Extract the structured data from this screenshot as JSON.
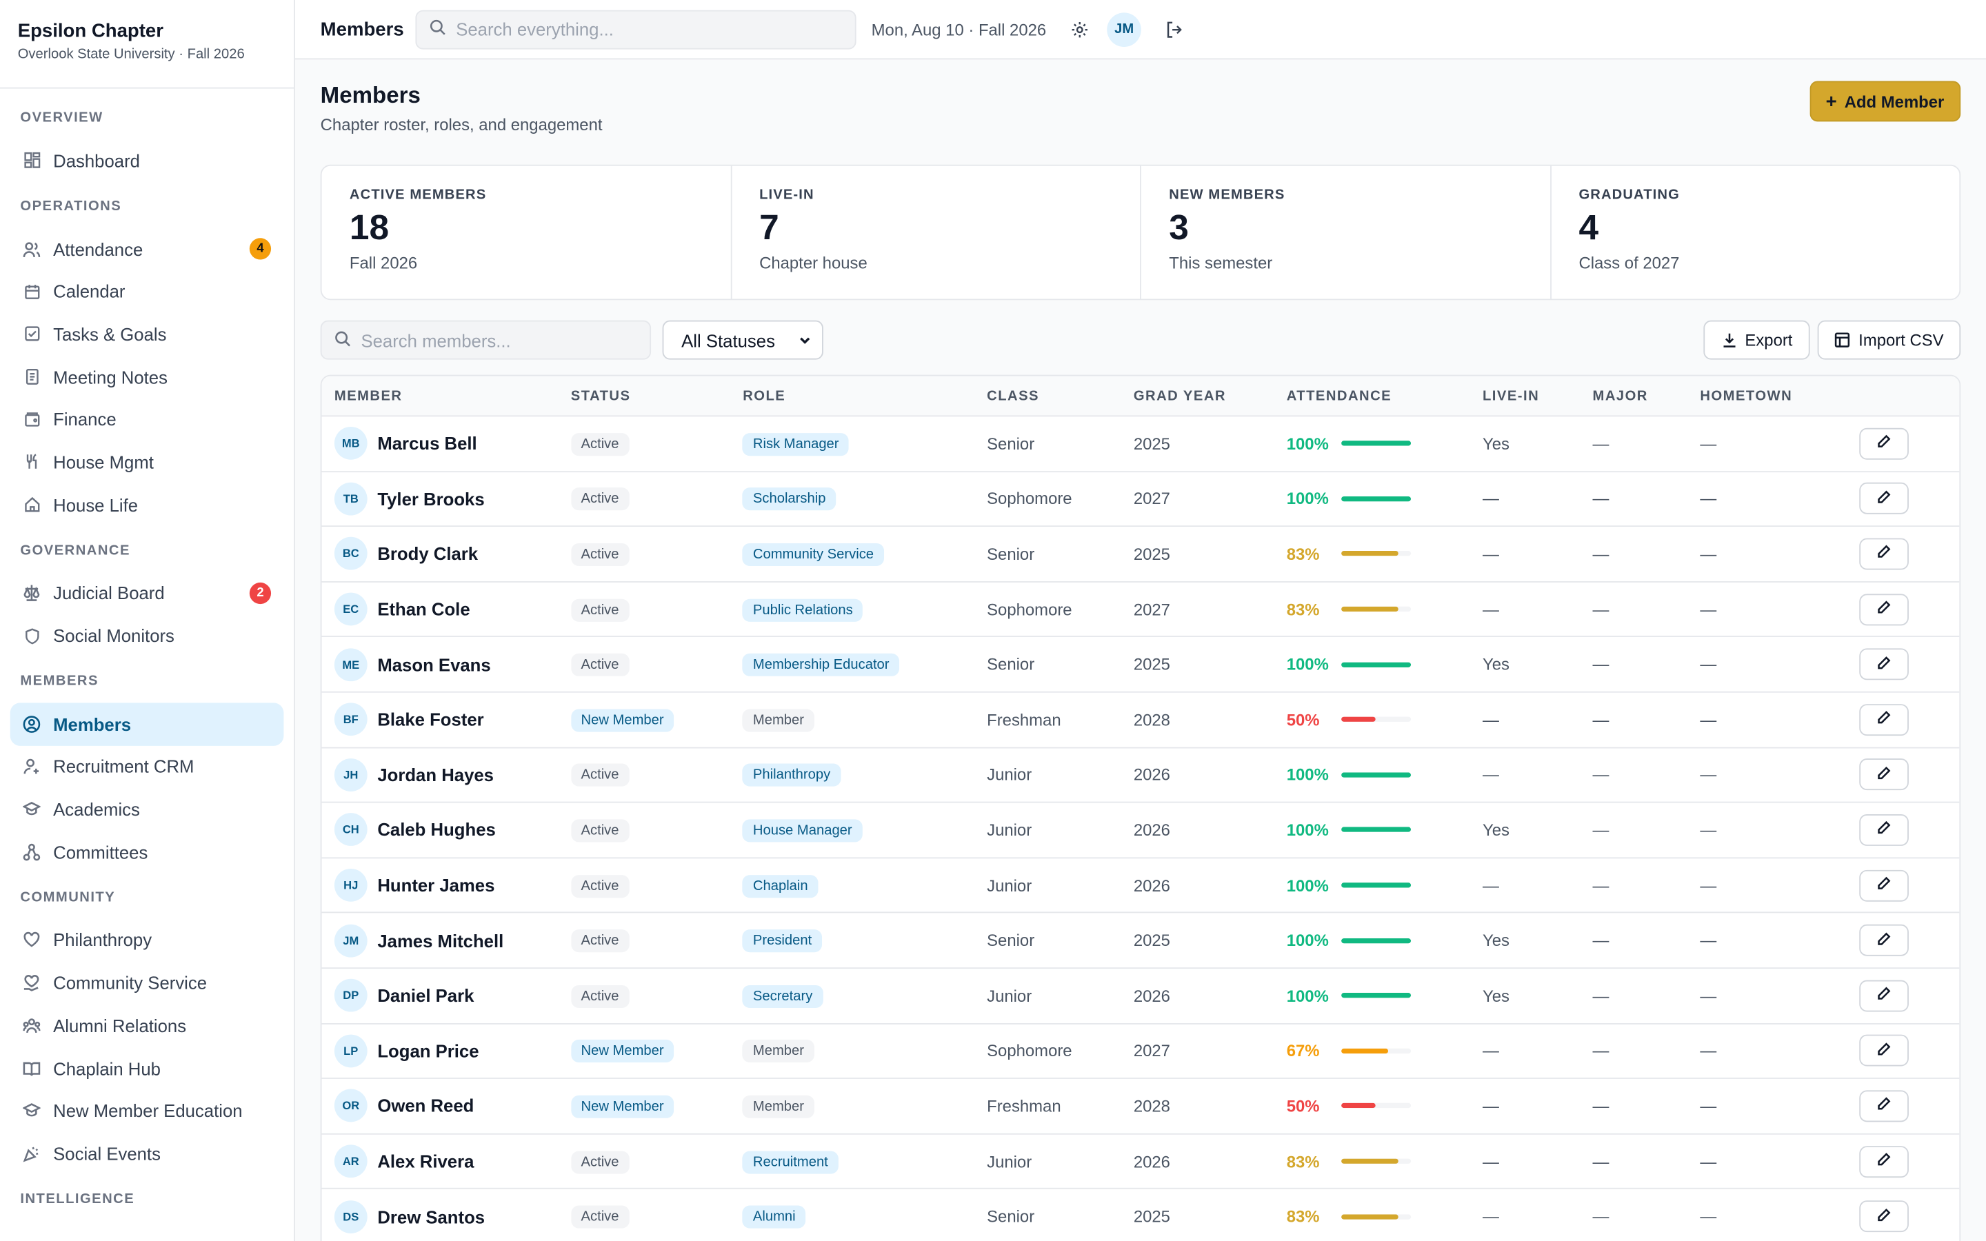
{
  "sidebar": {
    "chapter_name": "Epsilon Chapter",
    "chapter_sub": "Overlook State University · Fall 2026",
    "sections": {
      "overview": "OVERVIEW",
      "operations": "OPERATIONS",
      "governance": "GOVERNANCE",
      "members": "MEMBERS",
      "community": "COMMUNITY",
      "intelligence": "INTELLIGENCE"
    },
    "items": {
      "dashboard": "Dashboard",
      "attendance": "Attendance",
      "attendance_badge": "4",
      "calendar": "Calendar",
      "tasks": "Tasks & Goals",
      "meeting_notes": "Meeting Notes",
      "finance": "Finance",
      "house_mgmt": "House Mgmt",
      "house_life": "House Life",
      "judicial_board": "Judicial Board",
      "judicial_badge": "2",
      "social_monitors": "Social Monitors",
      "members": "Members",
      "recruitment": "Recruitment CRM",
      "academics": "Academics",
      "committees": "Committees",
      "philanthropy": "Philanthropy",
      "community_service": "Community Service",
      "alumni": "Alumni Relations",
      "chaplain": "Chaplain Hub",
      "nme": "New Member Education",
      "social_events": "Social Events"
    }
  },
  "topbar": {
    "title": "Members",
    "search_placeholder": "Search everything...",
    "date": "Mon, Aug 10 · Fall 2026",
    "avatar_initials": "JM"
  },
  "page": {
    "title": "Members",
    "subtitle": "Chapter roster, roles, and engagement",
    "add_button": "Add Member"
  },
  "stats": [
    {
      "label": "ACTIVE MEMBERS",
      "value": "18",
      "sub": "Fall 2026"
    },
    {
      "label": "LIVE-IN",
      "value": "7",
      "sub": "Chapter house"
    },
    {
      "label": "NEW MEMBERS",
      "value": "3",
      "sub": "This semester"
    },
    {
      "label": "GRADUATING",
      "value": "4",
      "sub": "Class of 2027"
    }
  ],
  "toolbar": {
    "search_placeholder": "Search members...",
    "status_filter": "All Statuses",
    "export": "Export",
    "import": "Import CSV"
  },
  "table": {
    "headers": {
      "member": "MEMBER",
      "status": "STATUS",
      "role": "ROLE",
      "class": "CLASS",
      "grad_year": "GRAD YEAR",
      "attendance": "ATTENDANCE",
      "live_in": "LIVE-IN",
      "major": "MAJOR",
      "hometown": "HOMETOWN"
    },
    "rows": [
      {
        "initials": "MB",
        "name": "Marcus Bell",
        "status": "Active",
        "role": "Risk Manager",
        "class": "Senior",
        "grad": "2025",
        "att": "100%",
        "att_value": 100,
        "live": "Yes",
        "major": "—",
        "home": "—"
      },
      {
        "initials": "TB",
        "name": "Tyler Brooks",
        "status": "Active",
        "role": "Scholarship",
        "class": "Sophomore",
        "grad": "2027",
        "att": "100%",
        "att_value": 100,
        "live": "—",
        "major": "—",
        "home": "—"
      },
      {
        "initials": "BC",
        "name": "Brody Clark",
        "status": "Active",
        "role": "Community Service",
        "class": "Senior",
        "grad": "2025",
        "att": "83%",
        "att_value": 83,
        "live": "—",
        "major": "—",
        "home": "—"
      },
      {
        "initials": "EC",
        "name": "Ethan Cole",
        "status": "Active",
        "role": "Public Relations",
        "class": "Sophomore",
        "grad": "2027",
        "att": "83%",
        "att_value": 83,
        "live": "—",
        "major": "—",
        "home": "—"
      },
      {
        "initials": "ME",
        "name": "Mason Evans",
        "status": "Active",
        "role": "Membership Educator",
        "class": "Senior",
        "grad": "2025",
        "att": "100%",
        "att_value": 100,
        "live": "Yes",
        "major": "—",
        "home": "—"
      },
      {
        "initials": "BF",
        "name": "Blake Foster",
        "status": "New Member",
        "role": "Member",
        "class": "Freshman",
        "grad": "2028",
        "att": "50%",
        "att_value": 50,
        "live": "—",
        "major": "—",
        "home": "—"
      },
      {
        "initials": "JH",
        "name": "Jordan Hayes",
        "status": "Active",
        "role": "Philanthropy",
        "class": "Junior",
        "grad": "2026",
        "att": "100%",
        "att_value": 100,
        "live": "—",
        "major": "—",
        "home": "—"
      },
      {
        "initials": "CH",
        "name": "Caleb Hughes",
        "status": "Active",
        "role": "House Manager",
        "class": "Junior",
        "grad": "2026",
        "att": "100%",
        "att_value": 100,
        "live": "Yes",
        "major": "—",
        "home": "—"
      },
      {
        "initials": "HJ",
        "name": "Hunter James",
        "status": "Active",
        "role": "Chaplain",
        "class": "Junior",
        "grad": "2026",
        "att": "100%",
        "att_value": 100,
        "live": "—",
        "major": "—",
        "home": "—"
      },
      {
        "initials": "JM",
        "name": "James Mitchell",
        "status": "Active",
        "role": "President",
        "class": "Senior",
        "grad": "2025",
        "att": "100%",
        "att_value": 100,
        "live": "Yes",
        "major": "—",
        "home": "—"
      },
      {
        "initials": "DP",
        "name": "Daniel Park",
        "status": "Active",
        "role": "Secretary",
        "class": "Junior",
        "grad": "2026",
        "att": "100%",
        "att_value": 100,
        "live": "Yes",
        "major": "—",
        "home": "—"
      },
      {
        "initials": "LP",
        "name": "Logan Price",
        "status": "New Member",
        "role": "Member",
        "class": "Sophomore",
        "grad": "2027",
        "att": "67%",
        "att_value": 67,
        "live": "—",
        "major": "—",
        "home": "—"
      },
      {
        "initials": "OR",
        "name": "Owen Reed",
        "status": "New Member",
        "role": "Member",
        "class": "Freshman",
        "grad": "2028",
        "att": "50%",
        "att_value": 50,
        "live": "—",
        "major": "—",
        "home": "—"
      },
      {
        "initials": "AR",
        "name": "Alex Rivera",
        "status": "Active",
        "role": "Recruitment",
        "class": "Junior",
        "grad": "2026",
        "att": "83%",
        "att_value": 83,
        "live": "—",
        "major": "—",
        "home": "—"
      },
      {
        "initials": "DS",
        "name": "Drew Santos",
        "status": "Active",
        "role": "Alumni",
        "class": "Senior",
        "grad": "2025",
        "att": "83%",
        "att_value": 83,
        "live": "—",
        "major": "—",
        "home": "—"
      }
    ]
  },
  "colors": {
    "accent": "#d4a72c",
    "att_high": "#10b981",
    "att_mid": "#d4a72c",
    "att_low_mid": "#f59e0b",
    "att_low": "#ef4444",
    "active_nav_bg": "#e0f2fe"
  }
}
